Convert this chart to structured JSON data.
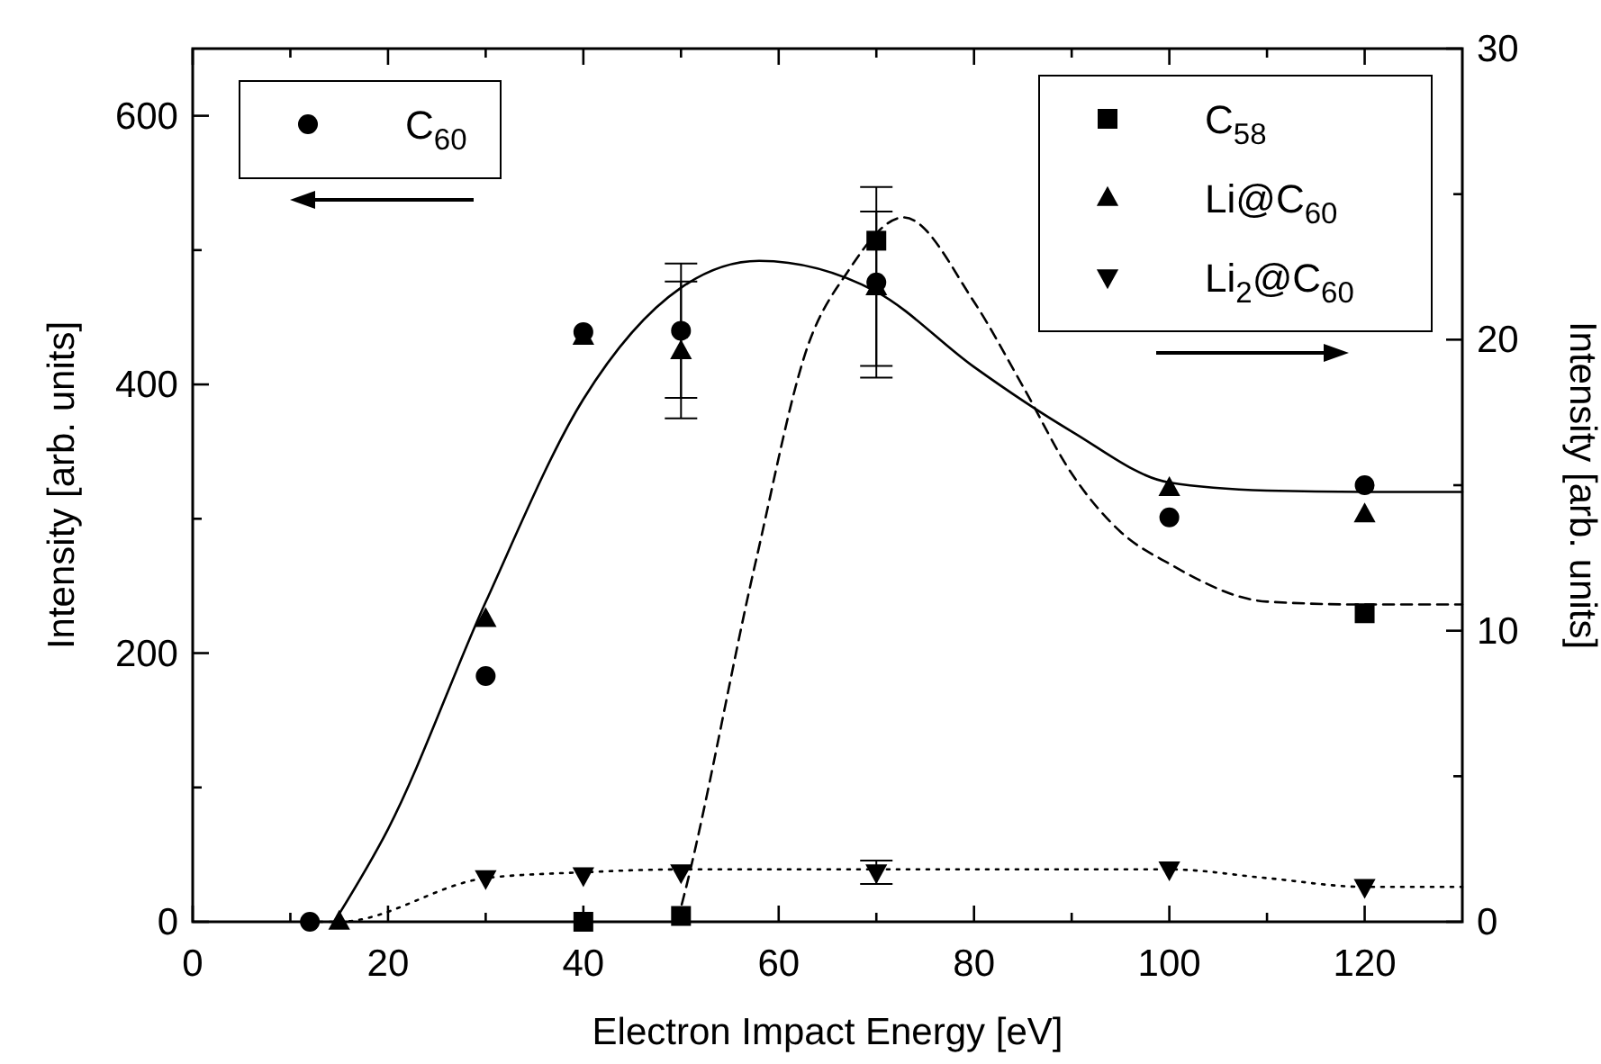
{
  "chart_data": {
    "type": "scatter",
    "xlabel": "Electron Impact Energy [eV]",
    "ylabel": "Intensity [arb. units]",
    "y2label": "Intensity [arb. units]",
    "xlim": [
      0,
      130
    ],
    "xticks": [
      0,
      {
        "value": 10,
        "label": null
      },
      20,
      {
        "value": 30,
        "label": null
      },
      40,
      {
        "value": 50,
        "label": null
      },
      60,
      {
        "value": 70,
        "label": null
      },
      80,
      {
        "value": 90,
        "label": null
      },
      100,
      {
        "value": 110,
        "label": null
      },
      120
    ],
    "ylim": [
      0,
      650
    ],
    "yticks": [
      0,
      {
        "value": 100,
        "label": null
      },
      200,
      {
        "value": 300,
        "label": null
      },
      400,
      {
        "value": 500,
        "label": null
      },
      600
    ],
    "y2lim": [
      0,
      30
    ],
    "y2ticks": [
      0,
      {
        "value": 5,
        "label": null
      },
      10,
      {
        "value": 15,
        "label": null
      },
      20,
      {
        "value": 25,
        "label": null
      },
      30
    ],
    "legend": "top",
    "series": [
      {
        "type": "line",
        "color": "#000000",
        "line_style": "solid",
        "x": [
          14.5,
          20,
          30,
          40,
          50,
          58,
          70,
          80,
          90,
          100,
          110,
          120,
          130
        ],
        "values": [
          0,
          69,
          238,
          389,
          472,
          492,
          469,
          413,
          365,
          327,
          321,
          320,
          320
        ]
      },
      {
        "type": "line",
        "axis": "y2",
        "color": "#000000",
        "line_style": "dashed",
        "x": [
          49.6,
          50,
          57.6,
          63,
          67,
          72.8,
          80,
          85,
          90,
          95,
          100,
          110,
          120,
          130
        ],
        "values": [
          0,
          0.5,
          12.3,
          19.8,
          22.3,
          24.2,
          21.3,
          18.4,
          15.4,
          13.4,
          12.3,
          11.0,
          10.9,
          10.9
        ]
      },
      {
        "type": "line",
        "axis": "y2",
        "color": "#000000",
        "line_style": "dotted",
        "x": [
          12,
          15,
          30,
          40,
          50,
          70,
          100,
          110,
          120,
          130
        ],
        "values": [
          0,
          0,
          1.5,
          1.7,
          1.8,
          1.8,
          1.8,
          1.5,
          1.2,
          1.2
        ]
      },
      {
        "name": "C$_{60}$",
        "color": "#000000",
        "marker": "circle",
        "x": [
          12,
          30,
          40,
          50,
          70,
          100,
          120
        ],
        "values": [
          0,
          183,
          439,
          440,
          476,
          301,
          325
        ],
        "errors": [
          null,
          null,
          null,
          50,
          [
            405,
            547
          ],
          null,
          null
        ]
      },
      {
        "name": "C$_{58}$",
        "axis": "y2",
        "color": "#000000",
        "marker": "square",
        "x": [
          40,
          50,
          70,
          120
        ],
        "values": [
          0,
          0.2,
          23.4,
          10.6
        ]
      },
      {
        "name": "Li@C$_{60}$",
        "axis": "y2",
        "color": "#000000",
        "marker": "triangle",
        "x": [
          15,
          30,
          40,
          50,
          70,
          100,
          120
        ],
        "values": [
          0,
          10.4,
          20.1,
          19.6,
          21.8,
          14.9,
          14.0
        ],
        "errors": [
          null,
          null,
          null,
          [
            17.3,
            22.0
          ],
          [
            19.1,
            24.4
          ],
          null,
          null
        ]
      },
      {
        "name": "Li$_{2}$@C$_{60}$",
        "axis": "y2",
        "color": "#000000",
        "marker": "triangle-down",
        "x": [
          30,
          40,
          50,
          70,
          100,
          120
        ],
        "values": [
          1.5,
          1.6,
          1.7,
          1.7,
          1.8,
          1.2
        ],
        "errors": [
          null,
          null,
          null,
          0.4,
          null,
          null
        ]
      }
    ]
  }
}
